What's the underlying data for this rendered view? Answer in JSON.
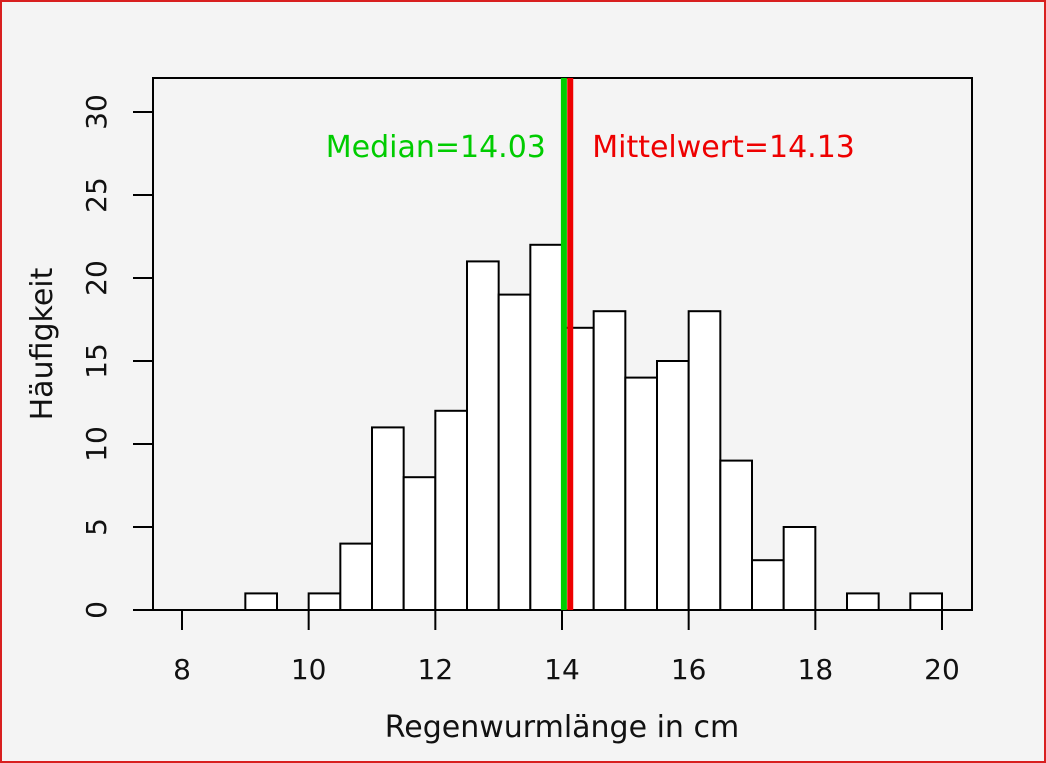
{
  "chart_data": {
    "type": "bar",
    "subtype": "histogram",
    "title": "",
    "xlabel": "Regenwurmlänge in cm",
    "ylabel": "Häufigkeit",
    "bin_width": 0.5,
    "bins_start": [
      8.0,
      8.5,
      9.0,
      9.5,
      10.0,
      10.5,
      11.0,
      11.5,
      12.0,
      12.5,
      13.0,
      13.5,
      14.0,
      14.5,
      15.0,
      15.5,
      16.0,
      16.5,
      17.0,
      17.5,
      18.0,
      18.5,
      19.0,
      19.5
    ],
    "values": [
      0,
      0,
      1,
      0,
      1,
      4,
      11,
      8,
      12,
      21,
      19,
      22,
      17,
      18,
      14,
      15,
      18,
      9,
      3,
      5,
      0,
      1,
      0,
      1
    ],
    "xlim": [
      8,
      20
    ],
    "ylim": [
      0,
      30
    ],
    "x_ticks": [
      8,
      10,
      12,
      14,
      16,
      18,
      20
    ],
    "y_ticks": [
      0,
      5,
      10,
      15,
      20,
      25,
      30
    ],
    "grid": false,
    "reference_lines": [
      {
        "label": "Median=14.03",
        "value": 14.03,
        "color": "#00cc00"
      },
      {
        "label": "Mittelwert=14.13",
        "value": 14.13,
        "color": "#ee0000"
      }
    ]
  }
}
